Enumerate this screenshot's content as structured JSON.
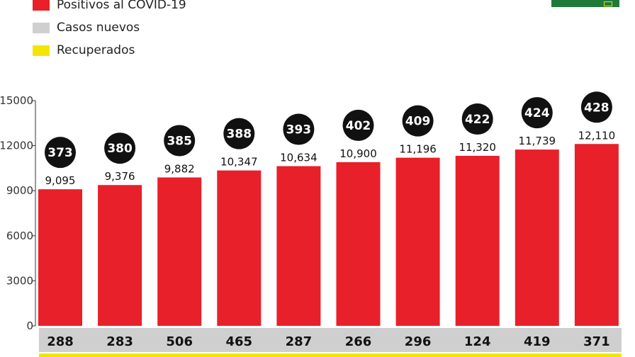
{
  "legend": [
    {
      "label": "Positivos al COVID-19",
      "color": "#e8202a"
    },
    {
      "label": "Casos nuevos",
      "color": "#cfcfcf"
    },
    {
      "label": "Recuperados",
      "color": "#f2e600"
    }
  ],
  "chart_data": {
    "type": "bar",
    "yticks": [
      "15000",
      "12000",
      "9000",
      "6000",
      "3000",
      "0"
    ],
    "ylim": [
      0,
      15000
    ],
    "grid": false,
    "series": [
      {
        "name": "Positivos al COVID-19",
        "color": "#e8202a",
        "values": [
          9095,
          9376,
          9882,
          10347,
          10634,
          10900,
          11196,
          11320,
          11739,
          12110
        ],
        "labels": [
          "9,095",
          "9,376",
          "9,882",
          "10,347",
          "10,634",
          "10,900",
          "11,196",
          "11,320",
          "11,739",
          "12,110"
        ]
      },
      {
        "name": "Casos nuevos",
        "color": "#cfcfcf",
        "values": [
          288,
          283,
          506,
          465,
          287,
          266,
          296,
          124,
          419,
          371
        ]
      },
      {
        "name": "Recuperados",
        "color": "#f2e600",
        "values": [
          373,
          380,
          385,
          388,
          393,
          402,
          409,
          422,
          424,
          428
        ]
      }
    ]
  }
}
